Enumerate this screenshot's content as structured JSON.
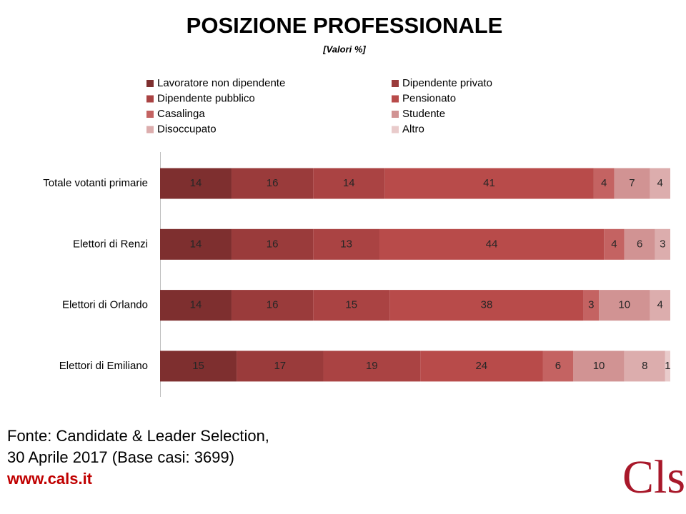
{
  "chart_data": {
    "type": "stacked-barh",
    "title": "POSIZIONE PROFESSIONALE",
    "subtitle": "[Valori %]",
    "categories": [
      "Totale votanti primarie",
      "Elettori di Renzi",
      "Elettori di Orlando",
      "Elettori di Emiliano"
    ],
    "series": [
      {
        "name": "Lavoratore non dipendente",
        "color": "#7e2f2f",
        "values": [
          14,
          14,
          14,
          15
        ]
      },
      {
        "name": "Dipendente privato",
        "color": "#9a3b3b",
        "values": [
          16,
          16,
          16,
          17
        ]
      },
      {
        "name": "Dipendente pubblico",
        "color": "#aa4343",
        "values": [
          14,
          13,
          15,
          19
        ]
      },
      {
        "name": "Pensionato",
        "color": "#b84b4a",
        "values": [
          41,
          44,
          38,
          24
        ]
      },
      {
        "name": "Casalinga",
        "color": "#c46362",
        "values": [
          4,
          4,
          3,
          6
        ]
      },
      {
        "name": "Studente",
        "color": "#d19393",
        "values": [
          7,
          6,
          10,
          10
        ]
      },
      {
        "name": "Disoccupato",
        "color": "#dcadad",
        "values": [
          4,
          3,
          4,
          8
        ]
      },
      {
        "name": "Altro",
        "color": "#e9cbcb",
        "values": [
          null,
          null,
          null,
          1
        ]
      }
    ],
    "xlim": [
      0,
      100
    ]
  },
  "footer": {
    "source": [
      "Fonte: Candidate & Leader Selection,",
      "30 Aprile 2017 (Base casi: 3699)"
    ],
    "url": "www.cals.it",
    "logo": "Cls"
  }
}
